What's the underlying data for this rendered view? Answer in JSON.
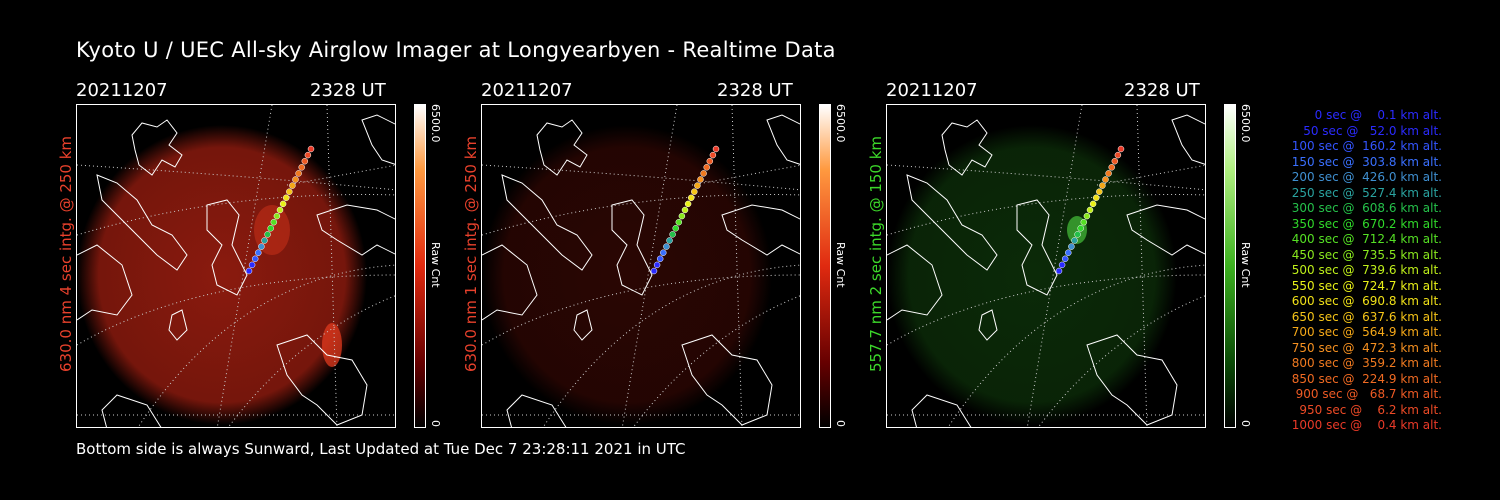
{
  "title": "Kyoto U / UEC All-sky Airglow Imager at Longyearbyen - Realtime Data",
  "footer": "Bottom side is always Sunward, Last Updated at Tue Dec  7 23:28:11 2021 in UTC",
  "panels": [
    {
      "date": "20211207",
      "time": "2328 UT",
      "ylabel": "630.0 nm 4 sec intg. @ 250 km",
      "label_color": "#e8412c",
      "cbar_max": "6500.0",
      "cbar_unit": "Raw Cnt",
      "cbar_min": "0",
      "cbar_color": "red",
      "glow": "#8a1a0e"
    },
    {
      "date": "20211207",
      "time": "2328 UT",
      "ylabel": "630.0 nm 1 sec intg. @ 250 km",
      "label_color": "#e8412c",
      "cbar_max": "6500.0",
      "cbar_unit": "Raw Cnt",
      "cbar_min": "0",
      "cbar_color": "red",
      "glow": "#2a0603"
    },
    {
      "date": "20211207",
      "time": "2328 UT",
      "ylabel": "557.7 nm 2 sec intg. @ 150 km",
      "label_color": "#3cd82a",
      "cbar_max": "6500.0",
      "cbar_unit": "Raw Cnt",
      "cbar_min": "0",
      "cbar_color": "green",
      "glow": "#0b2a08"
    }
  ],
  "legend": [
    {
      "text": "   0 sec @    0.1 km alt.",
      "color": "#2b2bff"
    },
    {
      "text": "  50 sec @   52.0 km alt.",
      "color": "#2b2bff"
    },
    {
      "text": " 100 sec @  160.2 km alt.",
      "color": "#3355ff"
    },
    {
      "text": " 150 sec @  303.8 km alt.",
      "color": "#3a70ff"
    },
    {
      "text": " 200 sec @  426.0 km alt.",
      "color": "#3f8fd0"
    },
    {
      "text": " 250 sec @  527.4 km alt.",
      "color": "#2aa3a0"
    },
    {
      "text": " 300 sec @  608.6 km alt.",
      "color": "#25c04a"
    },
    {
      "text": " 350 sec @  670.2 km alt.",
      "color": "#30d82a"
    },
    {
      "text": " 400 sec @  712.4 km alt.",
      "color": "#55e024"
    },
    {
      "text": " 450 sec @  735.5 km alt.",
      "color": "#8ae81e"
    },
    {
      "text": " 500 sec @  739.6 km alt.",
      "color": "#bff01a"
    },
    {
      "text": " 550 sec @  724.7 km alt.",
      "color": "#e8f018"
    },
    {
      "text": " 600 sec @  690.8 km alt.",
      "color": "#f0e018"
    },
    {
      "text": " 650 sec @  637.6 km alt.",
      "color": "#f5c418"
    },
    {
      "text": " 700 sec @  564.9 km alt.",
      "color": "#f5a818"
    },
    {
      "text": " 750 sec @  472.3 km alt.",
      "color": "#f59020"
    },
    {
      "text": " 800 sec @  359.2 km alt.",
      "color": "#f07a20"
    },
    {
      "text": " 850 sec @  224.9 km alt.",
      "color": "#f06a22"
    },
    {
      "text": " 900 sec @   68.7 km alt.",
      "color": "#ee5a24"
    },
    {
      "text": " 950 sec @    6.2 km alt.",
      "color": "#ec4a26"
    },
    {
      "text": "1000 sec @    0.4 km alt.",
      "color": "#ea3a28"
    }
  ]
}
